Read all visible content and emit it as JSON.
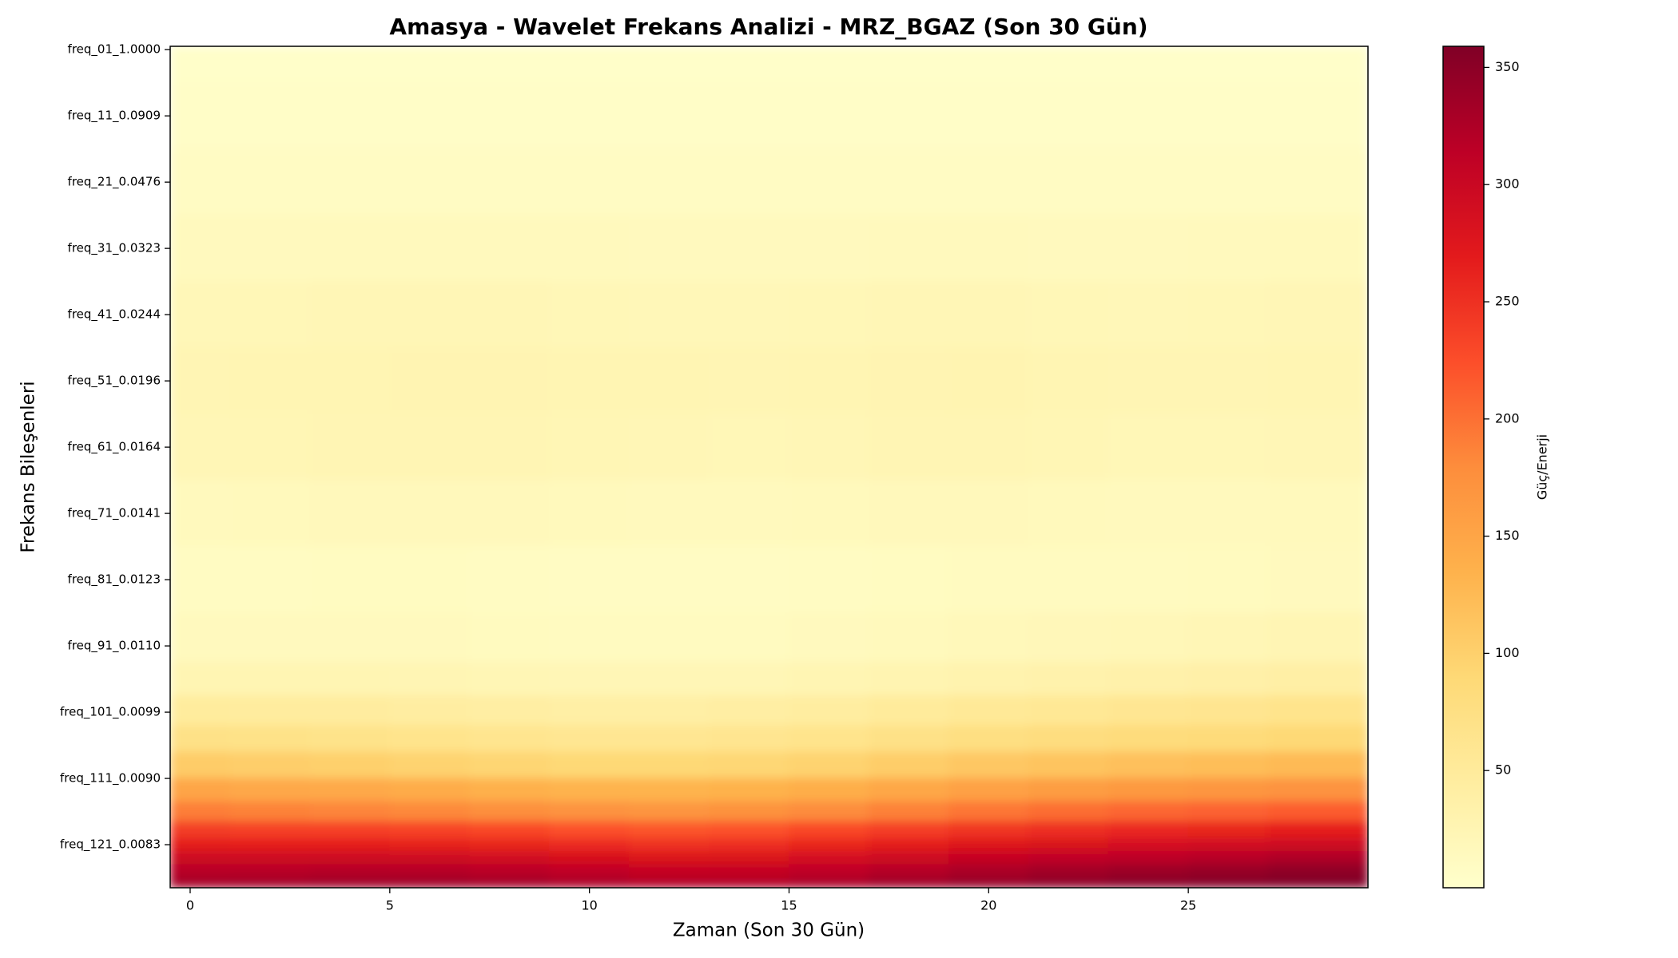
{
  "chart_data": {
    "type": "heatmap",
    "title": "Amasya - Wavelet Frekans Analizi - MRZ_BGAZ (Son 30 Gün)",
    "xlabel": "Zaman (Son 30 Gün)",
    "ylabel": "Frekans Bileşenleri",
    "colorbar_label": "Güç/Enerji",
    "colormap": [
      "#ffffcc",
      "#ffeda0",
      "#fed976",
      "#feb24c",
      "#fd8d3c",
      "#fc4e2a",
      "#e31a1c",
      "#bd0026",
      "#800026"
    ],
    "x": [
      0,
      2,
      4,
      6,
      8,
      10,
      12,
      14,
      16,
      18,
      20,
      22,
      24,
      26,
      28
    ],
    "y": [
      0,
      10,
      20,
      30,
      40,
      50,
      60,
      70,
      80,
      90,
      95,
      100,
      104,
      108,
      112,
      115,
      118,
      120,
      122,
      124,
      126
    ],
    "values": [
      [
        3,
        3,
        3,
        3,
        3,
        3,
        3,
        3,
        3,
        3,
        3,
        3,
        3,
        3,
        3
      ],
      [
        5,
        5,
        5,
        5,
        5,
        5,
        5,
        5,
        5,
        5,
        5,
        5,
        5,
        5,
        5
      ],
      [
        9,
        9,
        9,
        9,
        9,
        9,
        9,
        9,
        9,
        9,
        9,
        9,
        9,
        9,
        9
      ],
      [
        14,
        14,
        15,
        15,
        15,
        15,
        14,
        14,
        14,
        15,
        15,
        14,
        14,
        15,
        16
      ],
      [
        20,
        21,
        22,
        22,
        22,
        21,
        20,
        20,
        21,
        22,
        22,
        21,
        20,
        21,
        22
      ],
      [
        24,
        25,
        26,
        27,
        27,
        26,
        25,
        24,
        25,
        27,
        28,
        26,
        24,
        24,
        25
      ],
      [
        22,
        23,
        24,
        24,
        24,
        23,
        22,
        21,
        22,
        24,
        24,
        23,
        21,
        21,
        22
      ],
      [
        15,
        16,
        17,
        17,
        17,
        16,
        15,
        15,
        16,
        17,
        17,
        16,
        15,
        15,
        16
      ],
      [
        10,
        10,
        11,
        11,
        10,
        9,
        9,
        9,
        10,
        11,
        12,
        12,
        12,
        13,
        14
      ],
      [
        14,
        14,
        14,
        14,
        13,
        12,
        12,
        12,
        14,
        16,
        18,
        19,
        20,
        22,
        24
      ],
      [
        26,
        26,
        25,
        24,
        23,
        22,
        22,
        22,
        25,
        28,
        31,
        33,
        35,
        37,
        40
      ],
      [
        48,
        47,
        46,
        44,
        42,
        40,
        40,
        42,
        45,
        50,
        54,
        57,
        60,
        62,
        66
      ],
      [
        72,
        70,
        68,
        66,
        63,
        60,
        60,
        62,
        66,
        72,
        77,
        80,
        84,
        86,
        90
      ],
      [
        105,
        102,
        100,
        97,
        93,
        90,
        90,
        92,
        97,
        104,
        110,
        114,
        118,
        121,
        125
      ],
      [
        150,
        147,
        145,
        142,
        137,
        133,
        132,
        135,
        140,
        148,
        155,
        160,
        165,
        168,
        172
      ],
      [
        190,
        187,
        185,
        182,
        177,
        172,
        170,
        173,
        180,
        188,
        196,
        202,
        207,
        210,
        215
      ],
      [
        240,
        237,
        236,
        234,
        230,
        224,
        220,
        222,
        230,
        238,
        246,
        252,
        257,
        260,
        265
      ],
      [
        268,
        266,
        266,
        264,
        260,
        254,
        250,
        252,
        259,
        267,
        275,
        281,
        286,
        290,
        295
      ],
      [
        295,
        294,
        295,
        294,
        290,
        284,
        279,
        280,
        287,
        295,
        303,
        309,
        314,
        318,
        324
      ],
      [
        318,
        318,
        320,
        319,
        316,
        310,
        305,
        306,
        312,
        320,
        328,
        334,
        339,
        343,
        348
      ],
      [
        332,
        333,
        336,
        336,
        333,
        327,
        322,
        322,
        328,
        336,
        343,
        349,
        353,
        356,
        358
      ]
    ],
    "xlim": [
      -0.5,
      29.5
    ],
    "ylim": [
      126.5,
      -0.5
    ],
    "xticks": [
      0,
      5,
      10,
      15,
      20,
      25
    ],
    "yticks": [
      {
        "value": 0,
        "label": "freq_01_1.0000"
      },
      {
        "value": 10,
        "label": "freq_11_0.0909"
      },
      {
        "value": 20,
        "label": "freq_21_0.0476"
      },
      {
        "value": 30,
        "label": "freq_31_0.0323"
      },
      {
        "value": 40,
        "label": "freq_41_0.0244"
      },
      {
        "value": 50,
        "label": "freq_51_0.0196"
      },
      {
        "value": 60,
        "label": "freq_61_0.0164"
      },
      {
        "value": 70,
        "label": "freq_71_0.0141"
      },
      {
        "value": 80,
        "label": "freq_81_0.0123"
      },
      {
        "value": 90,
        "label": "freq_91_0.0110"
      },
      {
        "value": 100,
        "label": "freq_101_0.0099"
      },
      {
        "value": 110,
        "label": "freq_111_0.0090"
      },
      {
        "value": 120,
        "label": "freq_121_0.0083"
      }
    ],
    "zlim": [
      0,
      359
    ],
    "zticks": [
      50,
      100,
      150,
      200,
      250,
      300,
      350
    ]
  }
}
